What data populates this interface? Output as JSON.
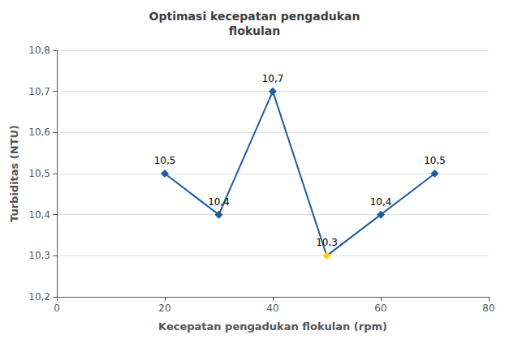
{
  "chart_data": {
    "type": "line",
    "title": "Optimasi kecepatan pengadukan\nflokulan",
    "xlabel": "Kecepatan pengadukan flokulan (rpm)",
    "ylabel": "Turbiditas (NTU)",
    "x": [
      20,
      30,
      40,
      50,
      60,
      70
    ],
    "values": [
      10.5,
      10.4,
      10.7,
      10.3,
      10.4,
      10.5
    ],
    "value_labels": [
      "10,5",
      "10,4",
      "10,7",
      "10,3",
      "10,4",
      "10,5"
    ],
    "data_labels": true,
    "color": "#1F5C9E",
    "colors": [
      "#1F5C9E",
      "#1F5C9E",
      "#1F5C9E",
      "#FFD700",
      "#1F5C9E",
      "#1F5C9E"
    ],
    "marker": "diamond",
    "xlim": [
      0,
      80
    ],
    "xticks": [
      0,
      20,
      40,
      60,
      80
    ],
    "ylim": [
      10.2,
      10.8
    ],
    "yticks": [
      {
        "value": 10.2,
        "label": "10,2"
      },
      {
        "value": 10.3,
        "label": "10,3"
      },
      {
        "value": 10.4,
        "label": "10,4"
      },
      {
        "value": 10.5,
        "label": "10,5"
      },
      {
        "value": 10.6,
        "label": "10,6"
      },
      {
        "value": 10.7,
        "label": "10,7"
      },
      {
        "value": 10.8,
        "label": "10,8"
      }
    ],
    "grid": "y"
  }
}
